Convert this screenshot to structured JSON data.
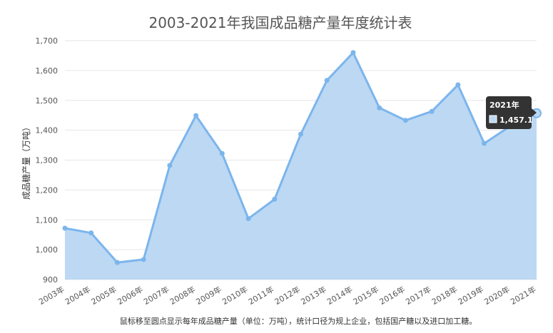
{
  "chart_data": {
    "type": "area",
    "title": "2003-2021年我国成品糖产量年度统计表",
    "ylabel": "成品糖产量（万吨）",
    "xlabel": "",
    "ylim": [
      900,
      1700
    ],
    "yticks": [
      "900",
      "1,000",
      "1,100",
      "1,200",
      "1,300",
      "1,400",
      "1,500",
      "1,600",
      "1,700"
    ],
    "categories": [
      "2003年",
      "2004年",
      "2005年",
      "2006年",
      "2007年",
      "2008年",
      "2009年",
      "2010年",
      "2011年",
      "2012年",
      "2013年",
      "2014年",
      "2015年",
      "2016年",
      "2017年",
      "2018年",
      "2019年",
      "2020年",
      "2021年"
    ],
    "values": [
      1072,
      1056,
      957,
      967,
      1282,
      1449,
      1322,
      1104,
      1169,
      1387,
      1567,
      1660,
      1475,
      1433,
      1463,
      1552,
      1356,
      1414,
      1457.1
    ],
    "grid": true,
    "color": "#7cb5ec",
    "fill_color": "#bcd8f3",
    "tooltip": {
      "category": "2021年",
      "value": "1,457.1"
    }
  },
  "footer_note": "鼠标移至圆点显示每年成品糖产量（单位：万吨），统计口径为规上企业，包括国产糖以及进口加工糖。"
}
